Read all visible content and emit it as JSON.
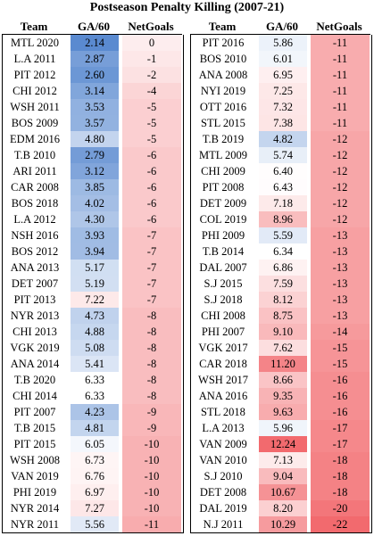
{
  "chart_data": {
    "type": "table",
    "title": "Postseason Penalty Killing (2007-21)",
    "columns": [
      "Team",
      "GA/60",
      "NetGoals"
    ],
    "tables": [
      {
        "rows": [
          [
            "MTL 2020",
            2.14,
            0
          ],
          [
            "L.A 2011",
            2.87,
            -1
          ],
          [
            "PIT 2012",
            2.6,
            -2
          ],
          [
            "CHI 2012",
            3.14,
            -4
          ],
          [
            "WSH 2011",
            3.53,
            -5
          ],
          [
            "BOS 2009",
            3.57,
            -5
          ],
          [
            "EDM 2016",
            4.8,
            -5
          ],
          [
            "T.B 2010",
            2.79,
            -6
          ],
          [
            "ARI 2011",
            3.12,
            -6
          ],
          [
            "CAR 2008",
            3.85,
            -6
          ],
          [
            "BOS 2018",
            4.02,
            -6
          ],
          [
            "L.A 2012",
            4.3,
            -6
          ],
          [
            "NSH 2016",
            3.93,
            -7
          ],
          [
            "BOS 2012",
            3.94,
            -7
          ],
          [
            "ANA 2013",
            5.17,
            -7
          ],
          [
            "DET 2007",
            5.19,
            -7
          ],
          [
            "PIT 2013",
            7.22,
            -7
          ],
          [
            "NYR 2013",
            4.73,
            -8
          ],
          [
            "CHI 2013",
            4.88,
            -8
          ],
          [
            "VGK 2019",
            5.08,
            -8
          ],
          [
            "ANA 2014",
            5.41,
            -8
          ],
          [
            "T.B 2020",
            6.33,
            -8
          ],
          [
            "CHI 2014",
            6.33,
            -8
          ],
          [
            "PIT 2007",
            4.23,
            -9
          ],
          [
            "T.B 2015",
            4.81,
            -9
          ],
          [
            "PIT 2015",
            6.05,
            -10
          ],
          [
            "WSH 2008",
            6.73,
            -10
          ],
          [
            "VAN 2019",
            6.76,
            -10
          ],
          [
            "PHI 2019",
            6.97,
            -10
          ],
          [
            "NYR 2014",
            7.27,
            -10
          ],
          [
            "NYR 2011",
            5.56,
            -11
          ]
        ]
      },
      {
        "rows": [
          [
            "PIT 2016",
            5.86,
            -11
          ],
          [
            "BOS 2010",
            6.01,
            -11
          ],
          [
            "ANA 2008",
            6.95,
            -11
          ],
          [
            "NYI 2019",
            7.25,
            -11
          ],
          [
            "OTT 2016",
            7.32,
            -11
          ],
          [
            "STL 2015",
            7.38,
            -11
          ],
          [
            "T.B 2019",
            4.82,
            -12
          ],
          [
            "MTL 2009",
            5.74,
            -12
          ],
          [
            "CHI 2009",
            6.4,
            -12
          ],
          [
            "PIT 2008",
            6.43,
            -12
          ],
          [
            "DET 2009",
            7.18,
            -12
          ],
          [
            "COL 2019",
            8.96,
            -12
          ],
          [
            "PHI 2009",
            5.59,
            -13
          ],
          [
            "T.B 2014",
            6.34,
            -13
          ],
          [
            "DAL 2007",
            6.86,
            -13
          ],
          [
            "S.J 2015",
            7.59,
            -13
          ],
          [
            "S.J 2018",
            8.12,
            -13
          ],
          [
            "CHI 2008",
            8.75,
            -13
          ],
          [
            "PHI 2007",
            9.1,
            -14
          ],
          [
            "VGK 2017",
            7.62,
            -15
          ],
          [
            "CAR 2018",
            11.2,
            -15
          ],
          [
            "WSH 2017",
            8.66,
            -16
          ],
          [
            "ANA 2016",
            9.35,
            -16
          ],
          [
            "STL 2018",
            9.63,
            -16
          ],
          [
            "L.A 2013",
            5.96,
            -17
          ],
          [
            "VAN 2009",
            12.24,
            -17
          ],
          [
            "VAN 2010",
            7.13,
            -18
          ],
          [
            "S.J 2010",
            9.04,
            -18
          ],
          [
            "DET 2008",
            10.67,
            -18
          ],
          [
            "DAL 2019",
            8.2,
            -20
          ],
          [
            "N.J 2011",
            10.29,
            -22
          ]
        ]
      }
    ],
    "colors": {
      "low": "#5a8ad0",
      "mid": "#ffffff",
      "high": "#f26a6e"
    }
  }
}
